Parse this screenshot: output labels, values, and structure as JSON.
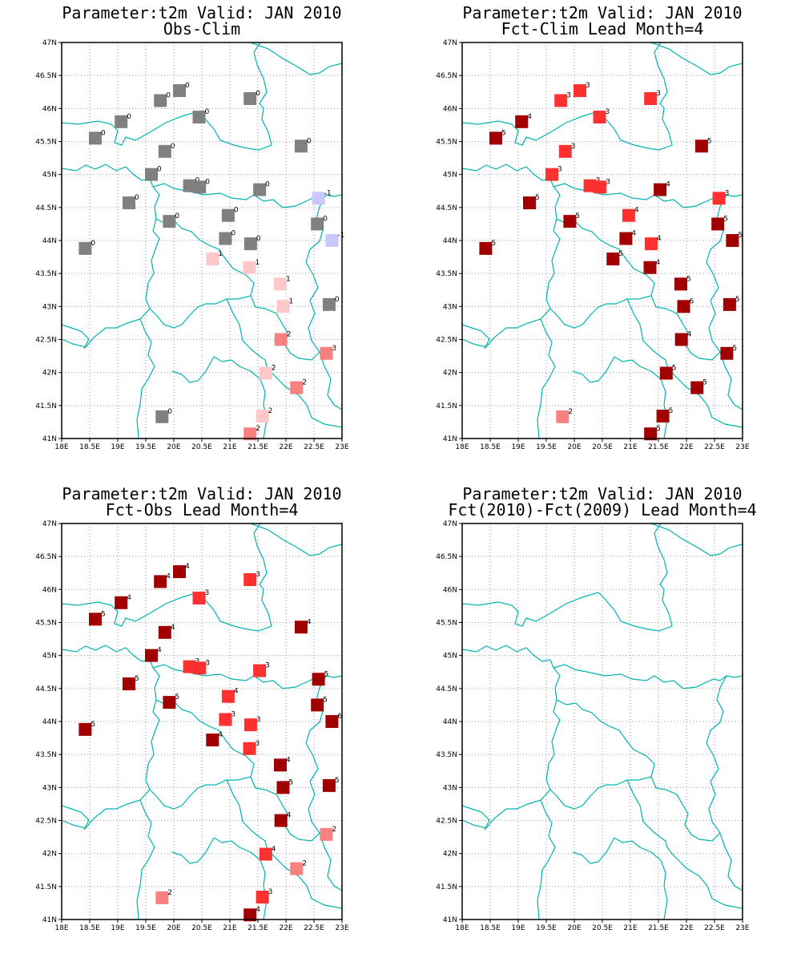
{
  "colors": {
    "border": "#00b3b3",
    "grid": "#9a9a9a",
    "value_colors": {
      "-1": "#c8c8ff",
      "0": "#808080",
      "1": "#ffc8c8",
      "2": "#f88080",
      "3": "#ff3030",
      "4": "#ff3030",
      "5": "#b00000",
      "6": "#a00000",
      "7": "#a00000"
    }
  },
  "axes": {
    "x_ticks": [
      "18E",
      "18.5E",
      "19E",
      "19.5E",
      "20E",
      "20.5E",
      "21E",
      "21.5E",
      "22E",
      "22.5E",
      "23E"
    ],
    "y_ticks": [
      "41N",
      "41.5N",
      "42N",
      "42.5N",
      "43N",
      "43.5N",
      "44N",
      "44.5N",
      "45N",
      "45.5N",
      "46N",
      "46.5N",
      "47N"
    ],
    "lon_range": [
      18,
      23
    ],
    "lat_range": [
      41,
      47
    ]
  },
  "panels": [
    {
      "title_line1": "Parameter:t2m Valid: JAN 2010",
      "title_line2": "Obs-Clim",
      "points": [
        {
          "lon": 20.1,
          "lat": 46.27,
          "v": 0,
          "label": "0"
        },
        {
          "lon": 19.76,
          "lat": 46.12,
          "v": 0,
          "label": "0"
        },
        {
          "lon": 21.36,
          "lat": 46.15,
          "v": 0,
          "label": "0"
        },
        {
          "lon": 20.45,
          "lat": 45.87,
          "v": 0,
          "label": "0"
        },
        {
          "lon": 19.06,
          "lat": 45.8,
          "v": 0,
          "label": "0"
        },
        {
          "lon": 18.6,
          "lat": 45.55,
          "v": 0,
          "label": "0"
        },
        {
          "lon": 22.27,
          "lat": 45.43,
          "v": 0,
          "label": "0"
        },
        {
          "lon": 19.84,
          "lat": 45.35,
          "v": 0,
          "label": "0"
        },
        {
          "lon": 19.6,
          "lat": 45.0,
          "v": 0,
          "label": "0"
        },
        {
          "lon": 20.28,
          "lat": 44.83,
          "v": 0,
          "label": "0"
        },
        {
          "lon": 20.46,
          "lat": 44.81,
          "v": 0,
          "label": "0"
        },
        {
          "lon": 21.53,
          "lat": 44.77,
          "v": 0,
          "label": "0"
        },
        {
          "lon": 22.58,
          "lat": 44.64,
          "v": -1,
          "label": "-1"
        },
        {
          "lon": 19.2,
          "lat": 44.57,
          "v": 0,
          "label": "0"
        },
        {
          "lon": 20.97,
          "lat": 44.38,
          "v": 0,
          "label": "0"
        },
        {
          "lon": 19.92,
          "lat": 44.29,
          "v": 0,
          "label": "0"
        },
        {
          "lon": 22.56,
          "lat": 44.25,
          "v": 0,
          "label": "0"
        },
        {
          "lon": 20.92,
          "lat": 44.03,
          "v": 0,
          "label": "0"
        },
        {
          "lon": 22.82,
          "lat": 44.0,
          "v": -1,
          "label": "-1"
        },
        {
          "lon": 21.37,
          "lat": 43.95,
          "v": 0,
          "label": "0"
        },
        {
          "lon": 18.42,
          "lat": 43.88,
          "v": 0,
          "label": "0"
        },
        {
          "lon": 20.69,
          "lat": 43.72,
          "v": 1,
          "label": "1"
        },
        {
          "lon": 21.35,
          "lat": 43.59,
          "v": 1,
          "label": "1"
        },
        {
          "lon": 21.9,
          "lat": 43.34,
          "v": 1,
          "label": "1"
        },
        {
          "lon": 21.95,
          "lat": 43.0,
          "v": 1,
          "label": "1"
        },
        {
          "lon": 22.77,
          "lat": 43.03,
          "v": 0,
          "label": "0"
        },
        {
          "lon": 21.91,
          "lat": 42.5,
          "v": 2,
          "label": "2"
        },
        {
          "lon": 22.72,
          "lat": 42.29,
          "v": 2,
          "label": "3"
        },
        {
          "lon": 21.64,
          "lat": 41.99,
          "v": 1,
          "label": "2"
        },
        {
          "lon": 22.19,
          "lat": 41.77,
          "v": 2,
          "label": "2"
        },
        {
          "lon": 19.79,
          "lat": 41.33,
          "v": 0,
          "label": "0"
        },
        {
          "lon": 21.58,
          "lat": 41.34,
          "v": 1,
          "label": "2"
        },
        {
          "lon": 21.36,
          "lat": 41.07,
          "v": 2,
          "label": "2"
        }
      ]
    },
    {
      "title_line1": "Parameter:t2m Valid: JAN 2010",
      "title_line2": "Fct-Clim Lead Month=4",
      "points": [
        {
          "lon": 20.1,
          "lat": 46.27,
          "v": 3,
          "label": "3"
        },
        {
          "lon": 19.76,
          "lat": 46.12,
          "v": 3,
          "label": "3"
        },
        {
          "lon": 21.36,
          "lat": 46.15,
          "v": 3,
          "label": "3"
        },
        {
          "lon": 20.45,
          "lat": 45.87,
          "v": 3,
          "label": "3"
        },
        {
          "lon": 19.06,
          "lat": 45.8,
          "v": 6,
          "label": "4"
        },
        {
          "lon": 18.6,
          "lat": 45.55,
          "v": 6,
          "label": "5"
        },
        {
          "lon": 22.27,
          "lat": 45.43,
          "v": 6,
          "label": "5"
        },
        {
          "lon": 19.84,
          "lat": 45.35,
          "v": 3,
          "label": "3"
        },
        {
          "lon": 19.6,
          "lat": 45.0,
          "v": 3,
          "label": "3"
        },
        {
          "lon": 20.28,
          "lat": 44.83,
          "v": 3,
          "label": "3"
        },
        {
          "lon": 20.46,
          "lat": 44.81,
          "v": 3,
          "label": "3"
        },
        {
          "lon": 21.53,
          "lat": 44.77,
          "v": 6,
          "label": "4"
        },
        {
          "lon": 22.58,
          "lat": 44.64,
          "v": 3,
          "label": "3"
        },
        {
          "lon": 19.2,
          "lat": 44.57,
          "v": 6,
          "label": "5"
        },
        {
          "lon": 20.97,
          "lat": 44.38,
          "v": 3,
          "label": "4"
        },
        {
          "lon": 19.92,
          "lat": 44.29,
          "v": 6,
          "label": "5"
        },
        {
          "lon": 22.56,
          "lat": 44.25,
          "v": 6,
          "label": "5"
        },
        {
          "lon": 20.92,
          "lat": 44.03,
          "v": 6,
          "label": "4"
        },
        {
          "lon": 22.82,
          "lat": 44.0,
          "v": 6,
          "label": "5"
        },
        {
          "lon": 21.37,
          "lat": 43.95,
          "v": 3,
          "label": "4"
        },
        {
          "lon": 18.42,
          "lat": 43.88,
          "v": 6,
          "label": "5"
        },
        {
          "lon": 20.69,
          "lat": 43.72,
          "v": 6,
          "label": "5"
        },
        {
          "lon": 21.35,
          "lat": 43.59,
          "v": 6,
          "label": "4"
        },
        {
          "lon": 21.9,
          "lat": 43.34,
          "v": 6,
          "label": "5"
        },
        {
          "lon": 21.95,
          "lat": 43.0,
          "v": 6,
          "label": "6"
        },
        {
          "lon": 22.77,
          "lat": 43.03,
          "v": 6,
          "label": "5"
        },
        {
          "lon": 21.91,
          "lat": 42.5,
          "v": 6,
          "label": "4"
        },
        {
          "lon": 22.72,
          "lat": 42.29,
          "v": 6,
          "label": "5"
        },
        {
          "lon": 21.64,
          "lat": 41.99,
          "v": 6,
          "label": "5"
        },
        {
          "lon": 22.19,
          "lat": 41.77,
          "v": 6,
          "label": "5"
        },
        {
          "lon": 19.79,
          "lat": 41.33,
          "v": 2,
          "label": "2"
        },
        {
          "lon": 21.58,
          "lat": 41.34,
          "v": 6,
          "label": "5"
        },
        {
          "lon": 21.36,
          "lat": 41.07,
          "v": 6,
          "label": "5"
        }
      ]
    },
    {
      "title_line1": "Parameter:t2m Valid: JAN 2010",
      "title_line2": "Fct-Obs Lead Month=4",
      "points": [
        {
          "lon": 20.1,
          "lat": 46.27,
          "v": 6,
          "label": "4"
        },
        {
          "lon": 19.76,
          "lat": 46.12,
          "v": 6,
          "label": "4"
        },
        {
          "lon": 21.36,
          "lat": 46.15,
          "v": 3,
          "label": "3"
        },
        {
          "lon": 20.45,
          "lat": 45.87,
          "v": 3,
          "label": "3"
        },
        {
          "lon": 19.06,
          "lat": 45.8,
          "v": 6,
          "label": "4"
        },
        {
          "lon": 18.6,
          "lat": 45.55,
          "v": 6,
          "label": "5"
        },
        {
          "lon": 22.27,
          "lat": 45.43,
          "v": 6,
          "label": "4"
        },
        {
          "lon": 19.84,
          "lat": 45.35,
          "v": 6,
          "label": "4"
        },
        {
          "lon": 19.6,
          "lat": 45.0,
          "v": 6,
          "label": "4"
        },
        {
          "lon": 20.28,
          "lat": 44.83,
          "v": 3,
          "label": "3"
        },
        {
          "lon": 20.46,
          "lat": 44.81,
          "v": 3,
          "label": "3"
        },
        {
          "lon": 21.53,
          "lat": 44.77,
          "v": 3,
          "label": "3"
        },
        {
          "lon": 22.58,
          "lat": 44.64,
          "v": 6,
          "label": "5"
        },
        {
          "lon": 19.2,
          "lat": 44.57,
          "v": 6,
          "label": "5"
        },
        {
          "lon": 20.97,
          "lat": 44.38,
          "v": 3,
          "label": "4"
        },
        {
          "lon": 19.92,
          "lat": 44.29,
          "v": 6,
          "label": "5"
        },
        {
          "lon": 22.56,
          "lat": 44.25,
          "v": 6,
          "label": "5"
        },
        {
          "lon": 20.92,
          "lat": 44.03,
          "v": 3,
          "label": "3"
        },
        {
          "lon": 22.82,
          "lat": 44.0,
          "v": 6,
          "label": "6"
        },
        {
          "lon": 21.37,
          "lat": 43.95,
          "v": 3,
          "label": "3"
        },
        {
          "lon": 18.42,
          "lat": 43.88,
          "v": 6,
          "label": "5"
        },
        {
          "lon": 20.69,
          "lat": 43.72,
          "v": 6,
          "label": "4"
        },
        {
          "lon": 21.35,
          "lat": 43.59,
          "v": 3,
          "label": "3"
        },
        {
          "lon": 21.9,
          "lat": 43.34,
          "v": 6,
          "label": "4"
        },
        {
          "lon": 21.95,
          "lat": 43.0,
          "v": 6,
          "label": "5"
        },
        {
          "lon": 22.77,
          "lat": 43.03,
          "v": 6,
          "label": "5"
        },
        {
          "lon": 21.91,
          "lat": 42.5,
          "v": 6,
          "label": "4"
        },
        {
          "lon": 22.72,
          "lat": 42.29,
          "v": 2,
          "label": "2"
        },
        {
          "lon": 21.64,
          "lat": 41.99,
          "v": 3,
          "label": "4"
        },
        {
          "lon": 22.19,
          "lat": 41.77,
          "v": 2,
          "label": "2"
        },
        {
          "lon": 19.79,
          "lat": 41.33,
          "v": 2,
          "label": "2"
        },
        {
          "lon": 21.58,
          "lat": 41.34,
          "v": 3,
          "label": "3"
        },
        {
          "lon": 21.36,
          "lat": 41.07,
          "v": 6,
          "label": "4"
        }
      ]
    },
    {
      "title_line1": "Parameter:t2m Valid: JAN 2010",
      "title_line2": "Fct(2010)-Fct(2009) Lead Month=4",
      "points": []
    }
  ]
}
